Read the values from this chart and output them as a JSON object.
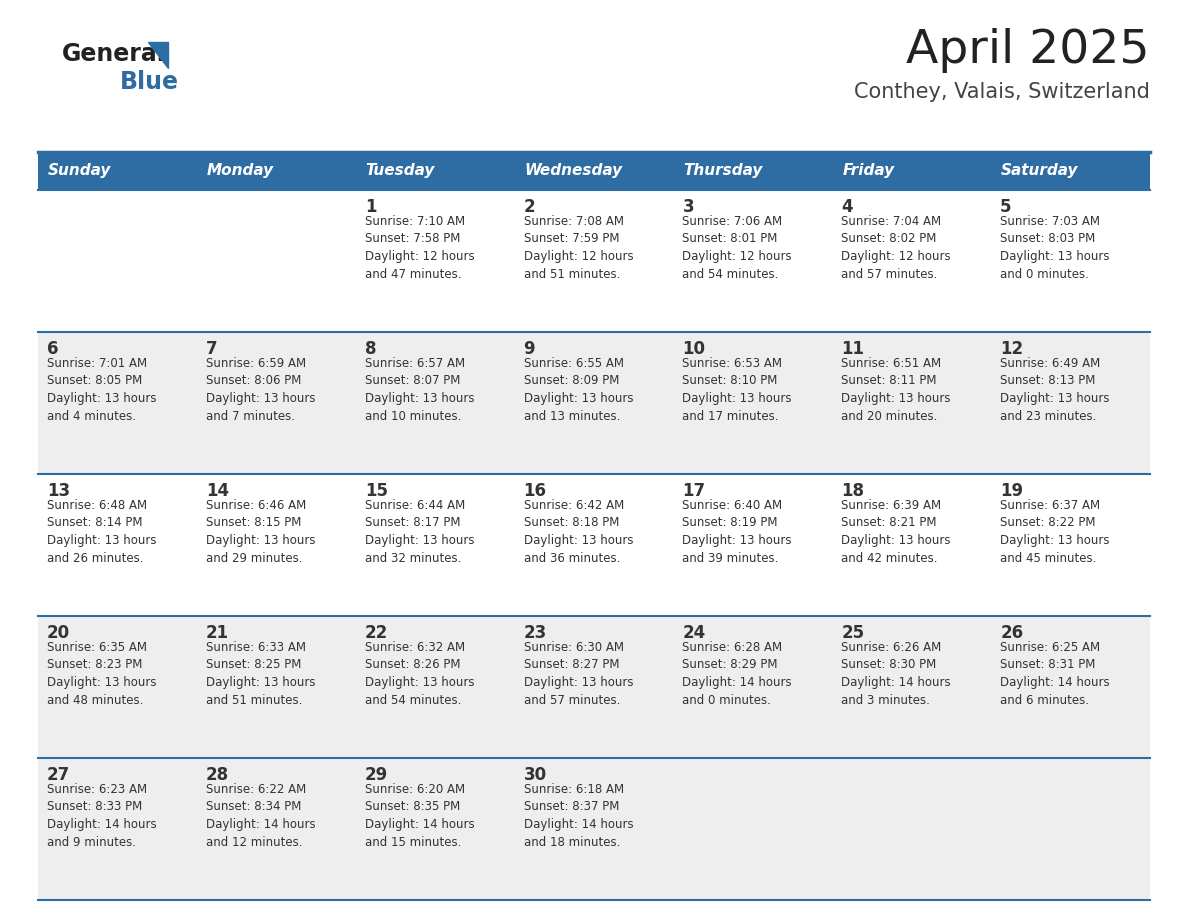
{
  "title": "April 2025",
  "subtitle": "Conthey, Valais, Switzerland",
  "header_color": "#2E6DA4",
  "header_text_color": "#FFFFFF",
  "day_names": [
    "Sunday",
    "Monday",
    "Tuesday",
    "Wednesday",
    "Thursday",
    "Friday",
    "Saturday"
  ],
  "bg_color": "#FFFFFF",
  "row_bg_colors": [
    "#FFFFFF",
    "#EEEEEE",
    "#FFFFFF",
    "#EEEEEE",
    "#EEEEEE"
  ],
  "border_color": "#2E6DA4",
  "text_color": "#333333",
  "date_font_size": 11,
  "info_font_size": 8.5,
  "header_font_size": 11,
  "logo_general_color": "#222222",
  "logo_blue_color": "#2E6DA4",
  "logo_triangle_color": "#2E6DA4",
  "weeks": [
    [
      {
        "day": "",
        "info": ""
      },
      {
        "day": "",
        "info": ""
      },
      {
        "day": "1",
        "info": "Sunrise: 7:10 AM\nSunset: 7:58 PM\nDaylight: 12 hours\nand 47 minutes."
      },
      {
        "day": "2",
        "info": "Sunrise: 7:08 AM\nSunset: 7:59 PM\nDaylight: 12 hours\nand 51 minutes."
      },
      {
        "day": "3",
        "info": "Sunrise: 7:06 AM\nSunset: 8:01 PM\nDaylight: 12 hours\nand 54 minutes."
      },
      {
        "day": "4",
        "info": "Sunrise: 7:04 AM\nSunset: 8:02 PM\nDaylight: 12 hours\nand 57 minutes."
      },
      {
        "day": "5",
        "info": "Sunrise: 7:03 AM\nSunset: 8:03 PM\nDaylight: 13 hours\nand 0 minutes."
      }
    ],
    [
      {
        "day": "6",
        "info": "Sunrise: 7:01 AM\nSunset: 8:05 PM\nDaylight: 13 hours\nand 4 minutes."
      },
      {
        "day": "7",
        "info": "Sunrise: 6:59 AM\nSunset: 8:06 PM\nDaylight: 13 hours\nand 7 minutes."
      },
      {
        "day": "8",
        "info": "Sunrise: 6:57 AM\nSunset: 8:07 PM\nDaylight: 13 hours\nand 10 minutes."
      },
      {
        "day": "9",
        "info": "Sunrise: 6:55 AM\nSunset: 8:09 PM\nDaylight: 13 hours\nand 13 minutes."
      },
      {
        "day": "10",
        "info": "Sunrise: 6:53 AM\nSunset: 8:10 PM\nDaylight: 13 hours\nand 17 minutes."
      },
      {
        "day": "11",
        "info": "Sunrise: 6:51 AM\nSunset: 8:11 PM\nDaylight: 13 hours\nand 20 minutes."
      },
      {
        "day": "12",
        "info": "Sunrise: 6:49 AM\nSunset: 8:13 PM\nDaylight: 13 hours\nand 23 minutes."
      }
    ],
    [
      {
        "day": "13",
        "info": "Sunrise: 6:48 AM\nSunset: 8:14 PM\nDaylight: 13 hours\nand 26 minutes."
      },
      {
        "day": "14",
        "info": "Sunrise: 6:46 AM\nSunset: 8:15 PM\nDaylight: 13 hours\nand 29 minutes."
      },
      {
        "day": "15",
        "info": "Sunrise: 6:44 AM\nSunset: 8:17 PM\nDaylight: 13 hours\nand 32 minutes."
      },
      {
        "day": "16",
        "info": "Sunrise: 6:42 AM\nSunset: 8:18 PM\nDaylight: 13 hours\nand 36 minutes."
      },
      {
        "day": "17",
        "info": "Sunrise: 6:40 AM\nSunset: 8:19 PM\nDaylight: 13 hours\nand 39 minutes."
      },
      {
        "day": "18",
        "info": "Sunrise: 6:39 AM\nSunset: 8:21 PM\nDaylight: 13 hours\nand 42 minutes."
      },
      {
        "day": "19",
        "info": "Sunrise: 6:37 AM\nSunset: 8:22 PM\nDaylight: 13 hours\nand 45 minutes."
      }
    ],
    [
      {
        "day": "20",
        "info": "Sunrise: 6:35 AM\nSunset: 8:23 PM\nDaylight: 13 hours\nand 48 minutes."
      },
      {
        "day": "21",
        "info": "Sunrise: 6:33 AM\nSunset: 8:25 PM\nDaylight: 13 hours\nand 51 minutes."
      },
      {
        "day": "22",
        "info": "Sunrise: 6:32 AM\nSunset: 8:26 PM\nDaylight: 13 hours\nand 54 minutes."
      },
      {
        "day": "23",
        "info": "Sunrise: 6:30 AM\nSunset: 8:27 PM\nDaylight: 13 hours\nand 57 minutes."
      },
      {
        "day": "24",
        "info": "Sunrise: 6:28 AM\nSunset: 8:29 PM\nDaylight: 14 hours\nand 0 minutes."
      },
      {
        "day": "25",
        "info": "Sunrise: 6:26 AM\nSunset: 8:30 PM\nDaylight: 14 hours\nand 3 minutes."
      },
      {
        "day": "26",
        "info": "Sunrise: 6:25 AM\nSunset: 8:31 PM\nDaylight: 14 hours\nand 6 minutes."
      }
    ],
    [
      {
        "day": "27",
        "info": "Sunrise: 6:23 AM\nSunset: 8:33 PM\nDaylight: 14 hours\nand 9 minutes."
      },
      {
        "day": "28",
        "info": "Sunrise: 6:22 AM\nSunset: 8:34 PM\nDaylight: 14 hours\nand 12 minutes."
      },
      {
        "day": "29",
        "info": "Sunrise: 6:20 AM\nSunset: 8:35 PM\nDaylight: 14 hours\nand 15 minutes."
      },
      {
        "day": "30",
        "info": "Sunrise: 6:18 AM\nSunset: 8:37 PM\nDaylight: 14 hours\nand 18 minutes."
      },
      {
        "day": "",
        "info": ""
      },
      {
        "day": "",
        "info": ""
      },
      {
        "day": "",
        "info": ""
      }
    ]
  ]
}
